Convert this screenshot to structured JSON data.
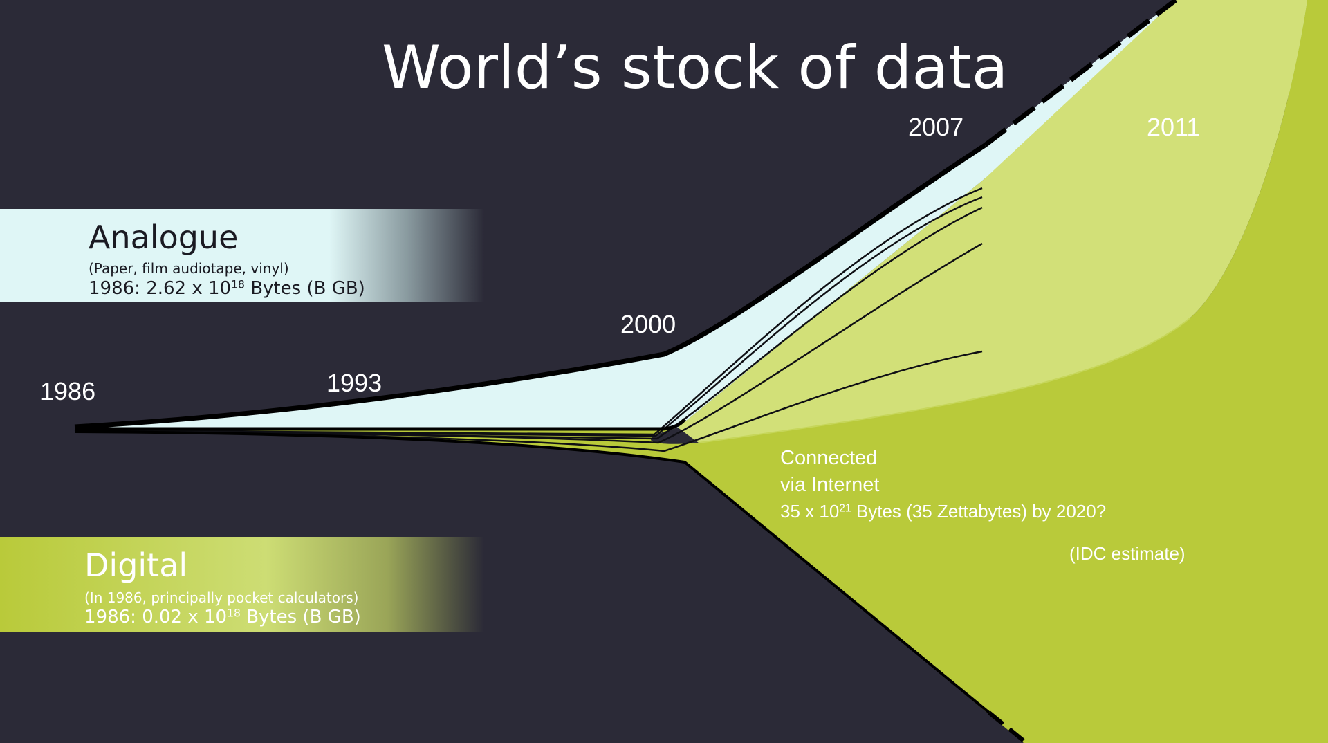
{
  "title": "World’s stock of data",
  "years": [
    "1986",
    "1993",
    "2000",
    "2007",
    "2011"
  ],
  "analogue": {
    "title": "Analogue",
    "subtitle": "(Paper, film audiotape, vinyl)",
    "value_prefix": "1986: 2.62 x 10",
    "value_exp": "18",
    "value_suffix": " Bytes (B GB)"
  },
  "digital": {
    "title": "Digital",
    "subtitle": "(In 1986, principally pocket calculators)",
    "value_prefix": "1986: 0.02 x 10",
    "value_exp": "18",
    "value_suffix": " Bytes (B GB)"
  },
  "connected": {
    "line1": "Connected",
    "line2": "via Internet",
    "line3_prefix": "35 x 10",
    "line3_exp": "21",
    "line3_suffix": " Bytes (35 Zettabytes) by 2020?",
    "note": "(IDC estimate)"
  },
  "colors": {
    "background": "#2b2a37",
    "analogue": "#dff6f6",
    "digital": "#b9ca3a",
    "digital_light": "#cfdf74",
    "outline": "#000000"
  }
}
